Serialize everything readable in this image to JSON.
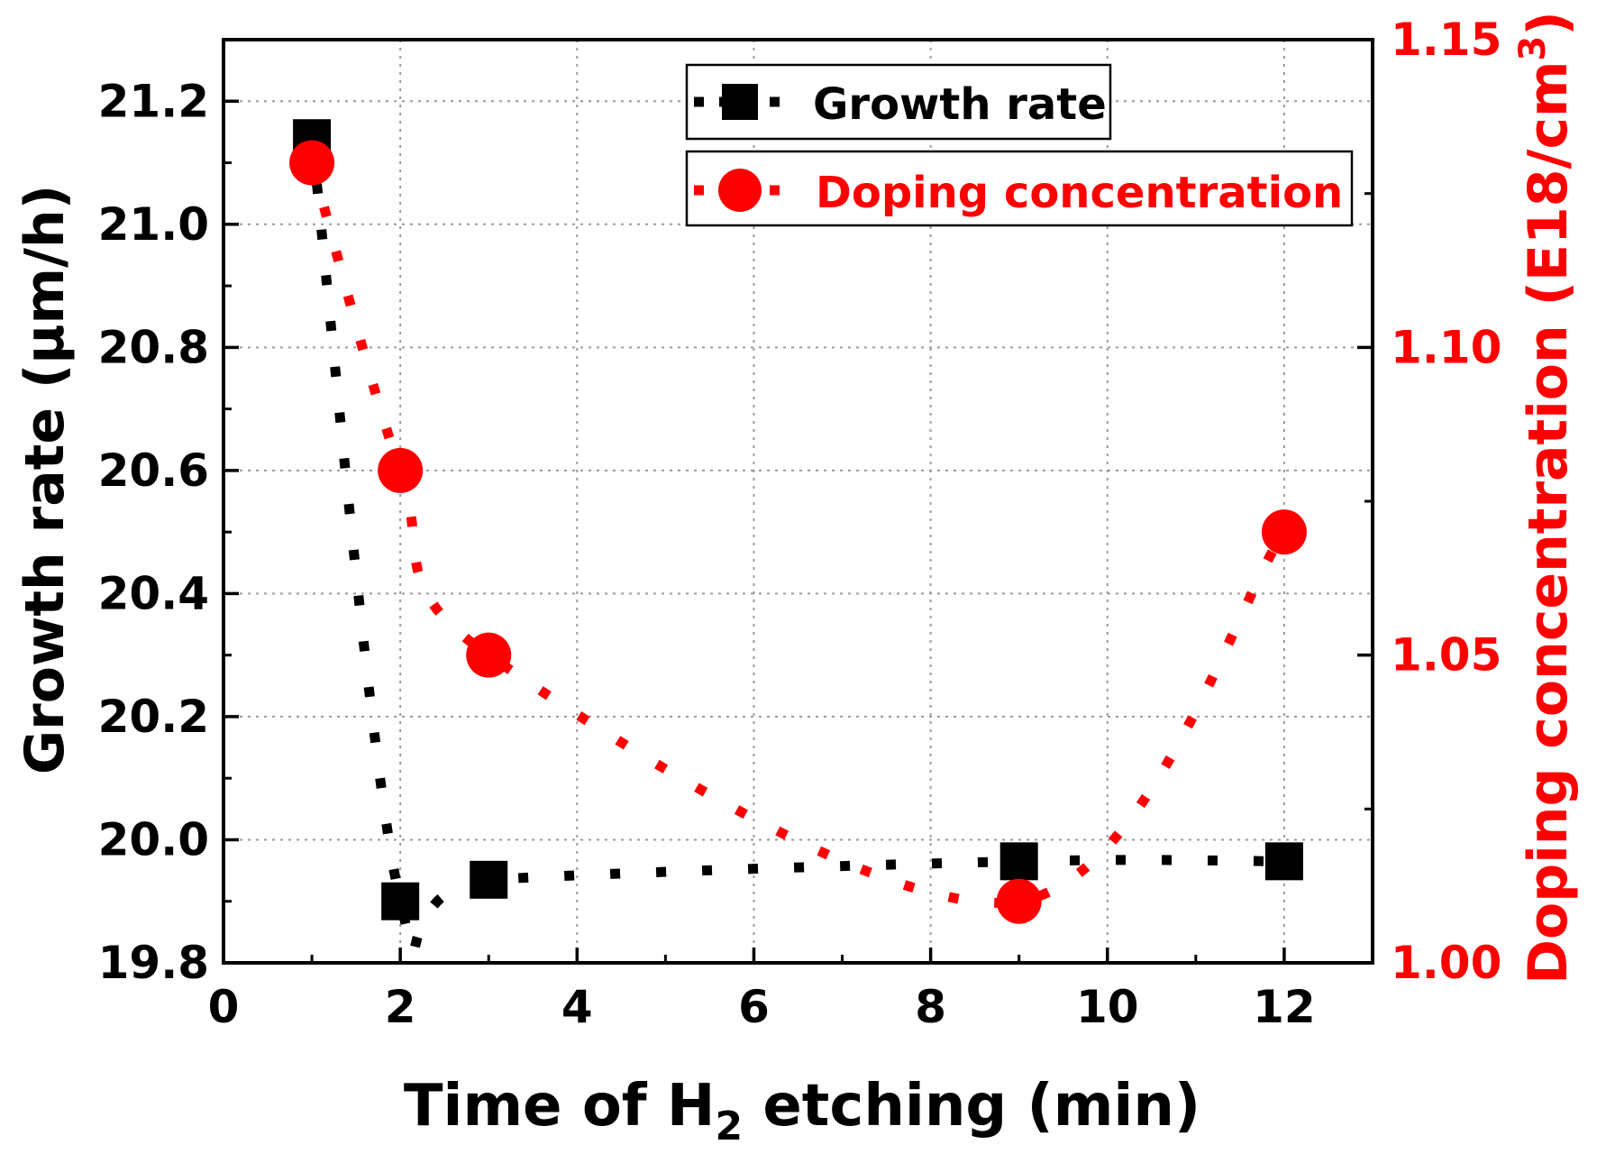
{
  "chart_data": {
    "type": "line",
    "x_axis": {
      "label_main": "Time of H",
      "label_sub": "2",
      "label_rest": " etching (min)",
      "range": [
        0,
        13
      ],
      "ticks": [
        0,
        2,
        4,
        6,
        8,
        10,
        12
      ],
      "tick_labels": [
        "0",
        "2",
        "4",
        "6",
        "8",
        "10",
        "12"
      ]
    },
    "y_left": {
      "label": "Growth rate (µm/h)",
      "range": [
        19.8,
        21.3
      ],
      "ticks": [
        19.8,
        20.0,
        20.2,
        20.4,
        20.6,
        20.8,
        21.0,
        21.2
      ],
      "tick_labels": [
        "19.8",
        "20.0",
        "20.2",
        "20.4",
        "20.6",
        "20.8",
        "21.0",
        "21.2"
      ],
      "color": "#000000"
    },
    "y_right": {
      "label_main": "Doping concentration (E18/cm",
      "label_sup": "3",
      "label_end": ")",
      "range": [
        1.0,
        1.15
      ],
      "ticks": [
        1.0,
        1.05,
        1.1,
        1.15
      ],
      "tick_labels": [
        "1.00",
        "1.05",
        "1.10",
        "1.15"
      ],
      "color": "#ff0000"
    },
    "grid": true,
    "legend_position": "top-right",
    "series": [
      {
        "name": "Growth rate",
        "axis": "left",
        "marker": "square",
        "color": "#000000",
        "x": [
          1,
          2,
          3,
          9,
          12
        ],
        "y": [
          21.14,
          19.9,
          19.935,
          19.965,
          19.965
        ]
      },
      {
        "name": "Doping concentration",
        "axis": "right",
        "marker": "circle",
        "color": "#ff0000",
        "x": [
          1,
          2,
          3,
          9,
          12
        ],
        "y": [
          1.13,
          1.08,
          1.05,
          1.01,
          1.07
        ]
      }
    ]
  }
}
